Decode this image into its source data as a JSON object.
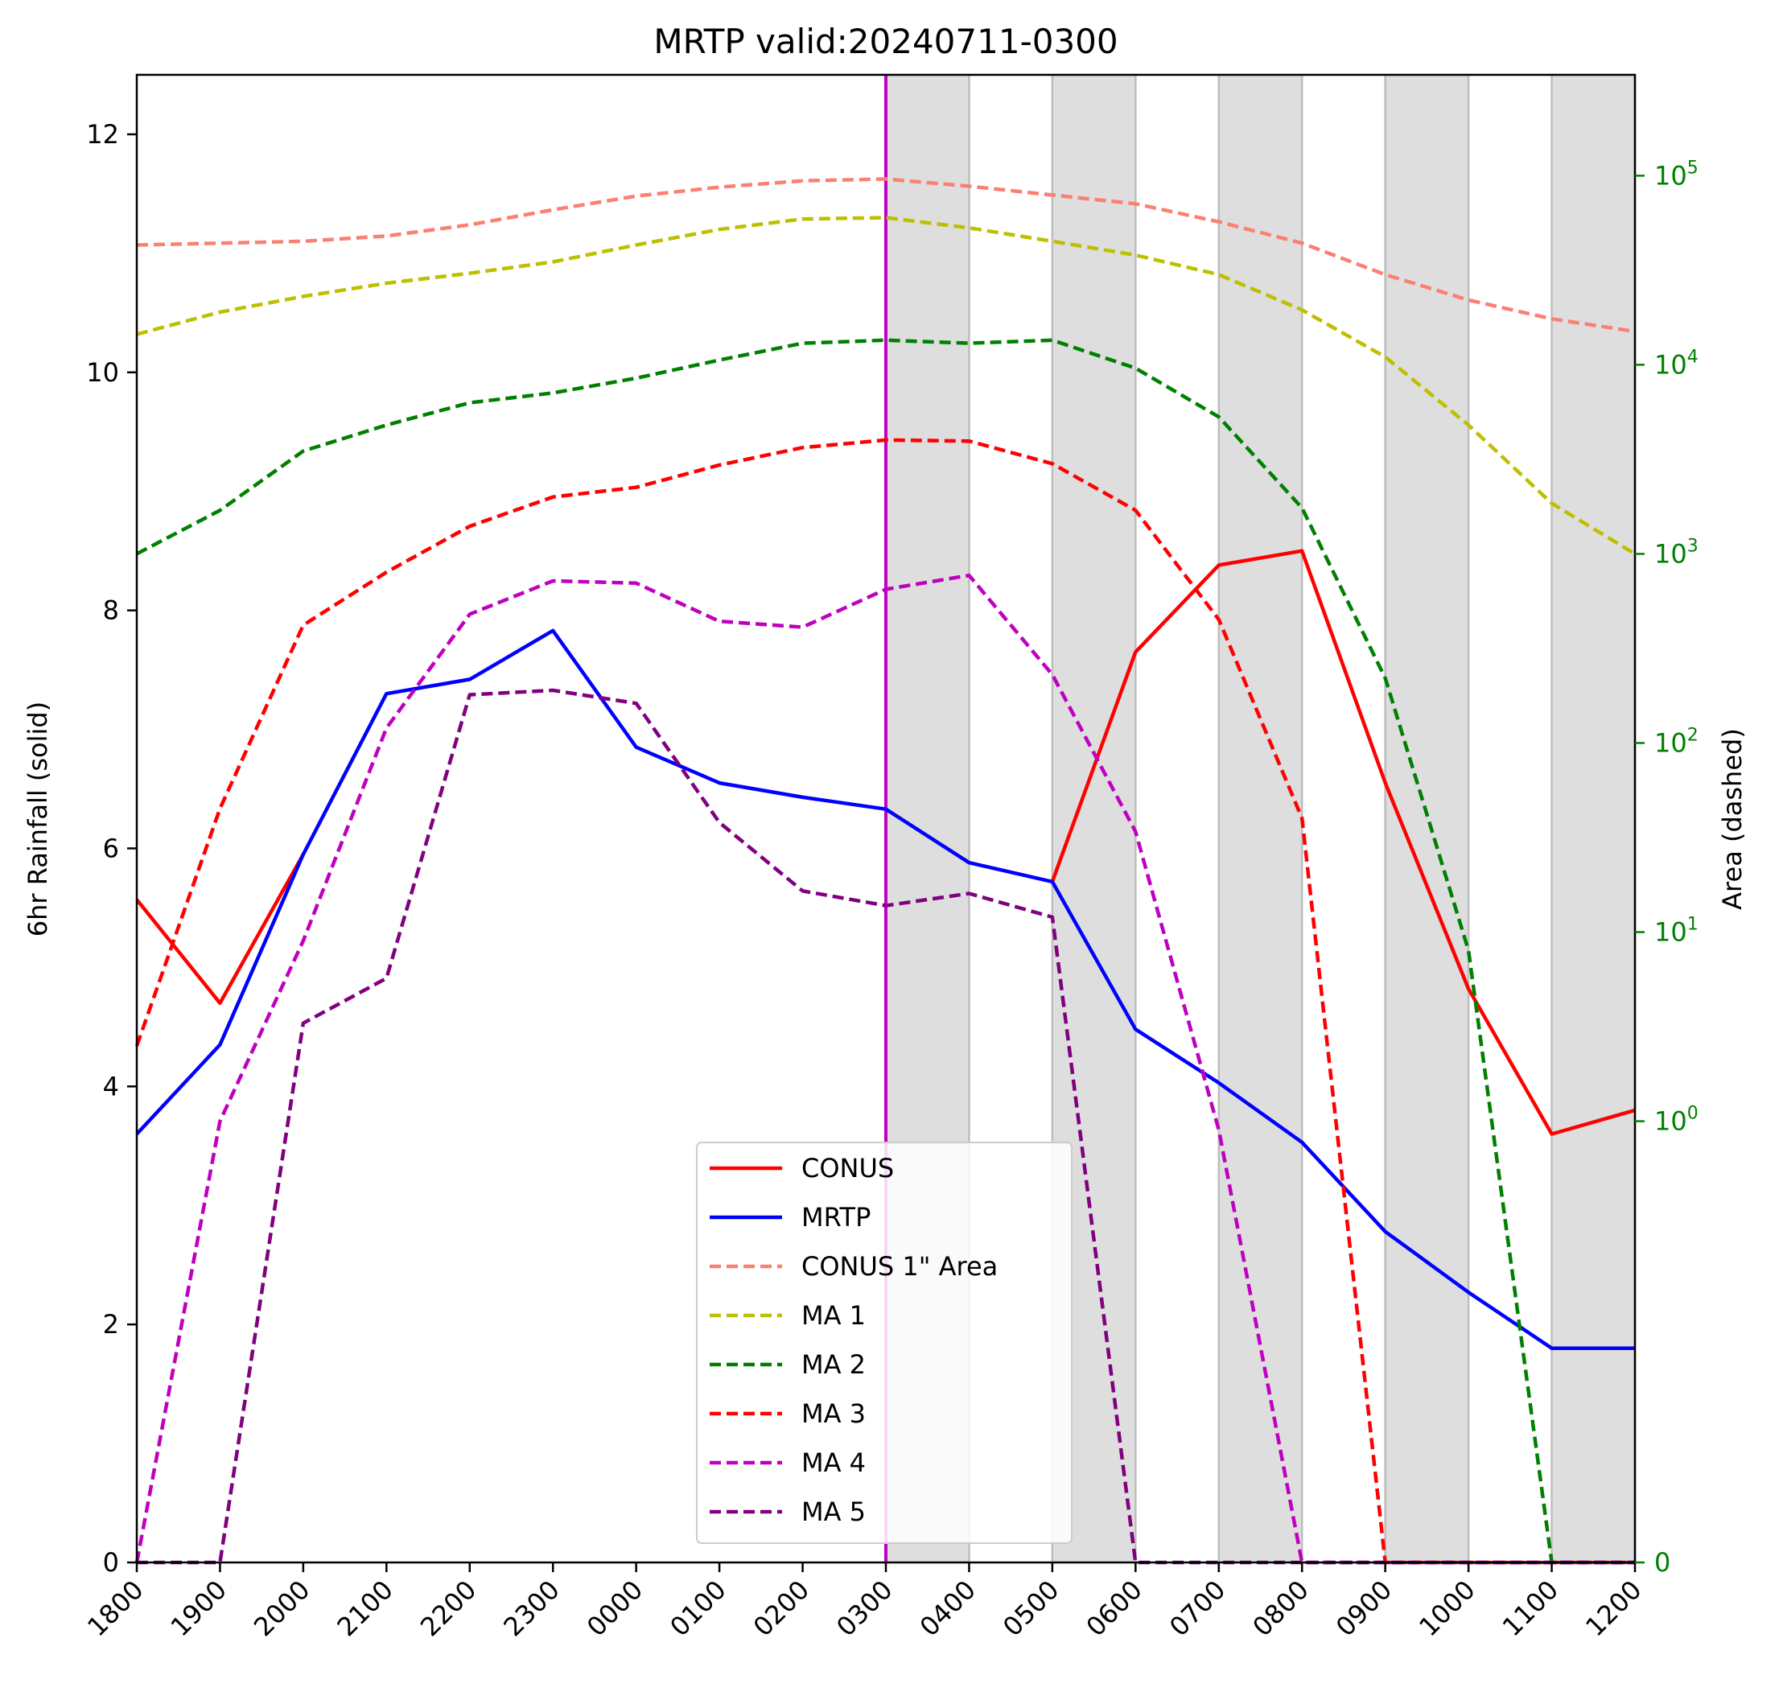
{
  "chart_data": {
    "type": "line",
    "title": "MRTP valid:20240711-0300",
    "ylabel": "6hr Rainfall (solid)",
    "y2label": "Area (dashed)",
    "categories": [
      "1800",
      "1900",
      "2000",
      "2100",
      "2200",
      "2300",
      "0000",
      "0100",
      "0200",
      "0300",
      "0400",
      "0500",
      "0600",
      "0700",
      "0800",
      "0900",
      "1000",
      "1100",
      "1200"
    ],
    "ylim": [
      0,
      12.5
    ],
    "y_ticks": [
      0,
      2,
      4,
      6,
      8,
      10,
      12
    ],
    "y2_scale": "symlog",
    "y2_ticks": [
      {
        "value": 0,
        "label": "0"
      },
      {
        "value": 1,
        "base": "10",
        "exp": "0"
      },
      {
        "value": 10,
        "base": "10",
        "exp": "1"
      },
      {
        "value": 100,
        "base": "10",
        "exp": "2"
      },
      {
        "value": 1000,
        "base": "10",
        "exp": "3"
      },
      {
        "value": 10000,
        "base": "10",
        "exp": "4"
      },
      {
        "value": 100000,
        "base": "10",
        "exp": "5"
      }
    ],
    "y2_tick_color": "#008000",
    "valid_time": "0300",
    "valid_line_color": "#bf00bf",
    "shaded_intervals": [
      [
        "0300",
        "0400"
      ],
      [
        "0500",
        "0600"
      ],
      [
        "0700",
        "0800"
      ],
      [
        "0900",
        "1000"
      ],
      [
        "1100",
        "1200"
      ]
    ],
    "shade_color": "#dedede",
    "legend_position": "lower center",
    "series": [
      {
        "name": "CONUS",
        "axis": "left",
        "style": "solid",
        "color": "#ff0000",
        "values": [
          5.57,
          4.7,
          5.95,
          null,
          null,
          null,
          null,
          null,
          null,
          null,
          null,
          5.72,
          7.65,
          8.38,
          8.5,
          6.55,
          4.82,
          3.6,
          3.8
        ]
      },
      {
        "name": "MRTP",
        "axis": "left",
        "style": "solid",
        "color": "#0000ff",
        "values": [
          3.6,
          4.35,
          5.95,
          7.3,
          7.42,
          7.83,
          6.85,
          6.55,
          6.43,
          6.33,
          5.88,
          5.72,
          4.48,
          4.03,
          3.53,
          2.78,
          2.27,
          1.8,
          1.8
        ]
      },
      {
        "name": "CONUS 1\" Area",
        "axis": "right",
        "style": "dashed",
        "color": "#fa8072",
        "values": [
          43000,
          44000,
          45000,
          48000,
          55000,
          66000,
          78000,
          87000,
          94000,
          96000,
          88000,
          79000,
          71000,
          57000,
          44000,
          30000,
          22000,
          17500,
          15000
        ]
      },
      {
        "name": "MA 1",
        "axis": "right",
        "style": "dashed",
        "color": "#bfbf00",
        "values": [
          14500,
          19000,
          23000,
          27000,
          30500,
          35000,
          43000,
          52000,
          59000,
          60000,
          53000,
          45000,
          38000,
          30000,
          19500,
          11000,
          4800,
          1850,
          1000
        ]
      },
      {
        "name": "MA 2",
        "axis": "right",
        "style": "dashed",
        "color": "#008000",
        "values": [
          1000,
          1700,
          3500,
          4800,
          6300,
          7100,
          8500,
          10600,
          13000,
          13500,
          13000,
          13500,
          9600,
          5300,
          1750,
          220,
          8,
          0,
          0
        ]
      },
      {
        "name": "MA 3",
        "axis": "right",
        "style": "dashed",
        "color": "#ff0000",
        "values": [
          2.5,
          45,
          420,
          800,
          1400,
          2000,
          2250,
          2950,
          3650,
          4000,
          3950,
          3000,
          1700,
          450,
          40,
          0,
          0,
          0,
          0
        ]
      },
      {
        "name": "MA 4",
        "axis": "right",
        "style": "dashed",
        "color": "#bf00bf",
        "values": [
          0,
          1,
          9,
          120,
          480,
          720,
          700,
          440,
          410,
          650,
          770,
          230,
          34,
          0.98,
          0,
          0,
          0,
          0,
          0
        ]
      },
      {
        "name": "MA 5",
        "axis": "right",
        "style": "dashed",
        "color": "#800080",
        "values": [
          0,
          0,
          3.3,
          5.7,
          180,
          190,
          162,
          38,
          16.5,
          13.8,
          16,
          12,
          0,
          0,
          0,
          0,
          0,
          0,
          0
        ]
      }
    ]
  }
}
